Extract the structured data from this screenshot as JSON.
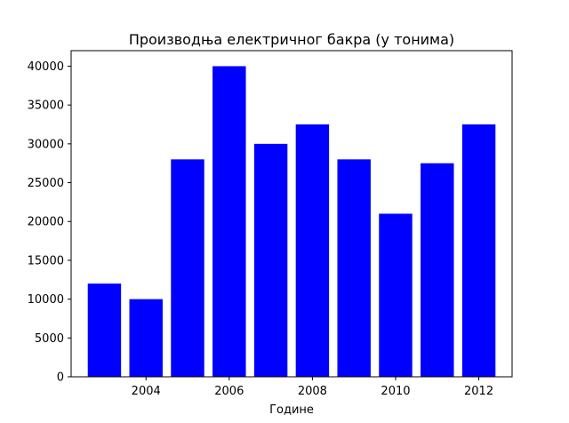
{
  "chart_data": {
    "type": "bar",
    "title": "Производња електричног бакра (у тонима)",
    "xlabel": "Године",
    "ylabel": "",
    "x": [
      2003,
      2004,
      2005,
      2006,
      2007,
      2008,
      2009,
      2010,
      2011,
      2012
    ],
    "values": [
      12000,
      10000,
      28000,
      40000,
      30000,
      32500,
      28000,
      21000,
      27500,
      32500
    ],
    "x_ticks": [
      2004,
      2006,
      2008,
      2010,
      2012
    ],
    "y_ticks": [
      0,
      5000,
      10000,
      15000,
      20000,
      25000,
      30000,
      35000,
      40000
    ],
    "xlim": [
      2002.2,
      2012.8
    ],
    "ylim": [
      0,
      42000
    ],
    "bar_color": "#0000ff",
    "grid": false,
    "legend": "none"
  }
}
